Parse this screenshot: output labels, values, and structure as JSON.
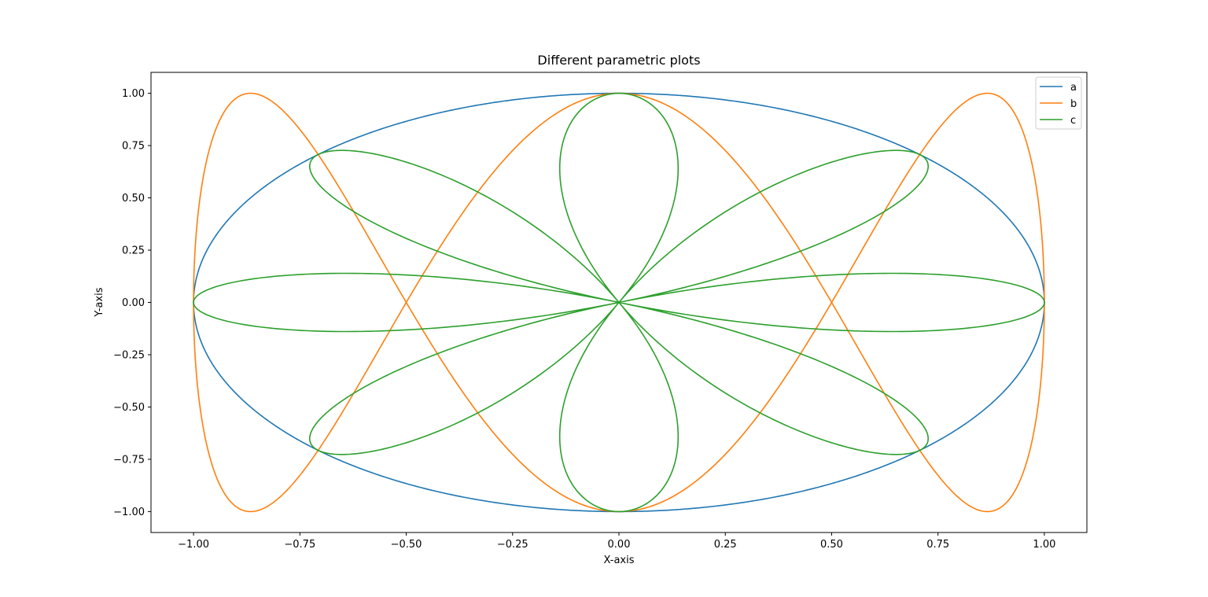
{
  "chart_data": {
    "type": "line",
    "title": "Different parametric plots",
    "xlabel": "X-axis",
    "ylabel": "Y-axis",
    "xlim": [
      -1.1,
      1.1
    ],
    "ylim": [
      -1.1,
      1.1
    ],
    "x_ticks": [
      -1.0,
      -0.75,
      -0.5,
      -0.25,
      0.0,
      0.25,
      0.5,
      0.75,
      1.0
    ],
    "x_tick_labels": [
      "−1.00",
      "−0.75",
      "−0.50",
      "−0.25",
      "0.00",
      "0.25",
      "0.50",
      "0.75",
      "1.00"
    ],
    "y_ticks": [
      1.0,
      0.75,
      0.5,
      0.25,
      0.0,
      -0.25,
      -0.5,
      -0.75,
      -1.0
    ],
    "y_tick_labels": [
      "1.00",
      "0.75",
      "0.50",
      "0.25",
      "0.00",
      "−0.25",
      "−0.50",
      "−0.75",
      "−1.00"
    ],
    "grid": false,
    "legend": "upper-right",
    "series": [
      {
        "name": "a",
        "color": "#1f77b4",
        "x_expr": "sin(t)",
        "y_expr": "cos(t)",
        "t_range": [
          0,
          6.283185307
        ]
      },
      {
        "name": "b",
        "color": "#ff7f0e",
        "x_expr": "sin(t)",
        "y_expr": "cos(3t)",
        "t_range": [
          0,
          6.283185307
        ]
      },
      {
        "name": "c",
        "color": "#2ca02c",
        "x_expr": "sin(t)cos(4t)",
        "y_expr": "cos(t)cos(4t)",
        "t_range": [
          0,
          6.283185307
        ]
      }
    ]
  }
}
